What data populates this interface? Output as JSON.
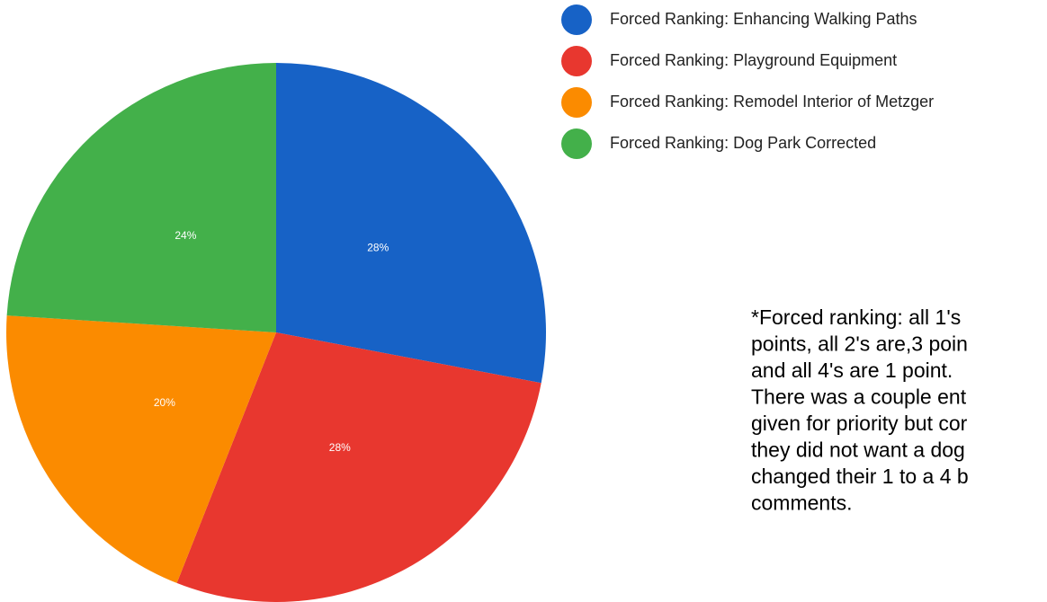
{
  "chart_data": {
    "type": "pie",
    "categories": [
      "Forced Ranking: Enhancing Walking Paths",
      "Forced Ranking: Playground Equipment",
      "Forced Ranking: Remodel Interior of Metzger",
      "Forced Ranking: Dog Park Corrected"
    ],
    "values": [
      28,
      28,
      20,
      24
    ],
    "value_labels": [
      "28%",
      "28%",
      "20%",
      "24%"
    ],
    "colors": [
      "#1762c6",
      "#e8372f",
      "#fb8b00",
      "#43b04a"
    ],
    "legend": "top-right",
    "annotation": [
      "*Forced ranking: all 1's",
      "points, all 2's are,3 poin",
      "and all 4's are 1 point.",
      "There was a couple ent",
      "given for priority but cor",
      "they did not want a dog",
      "changed their 1 to a 4 b",
      "comments."
    ]
  }
}
